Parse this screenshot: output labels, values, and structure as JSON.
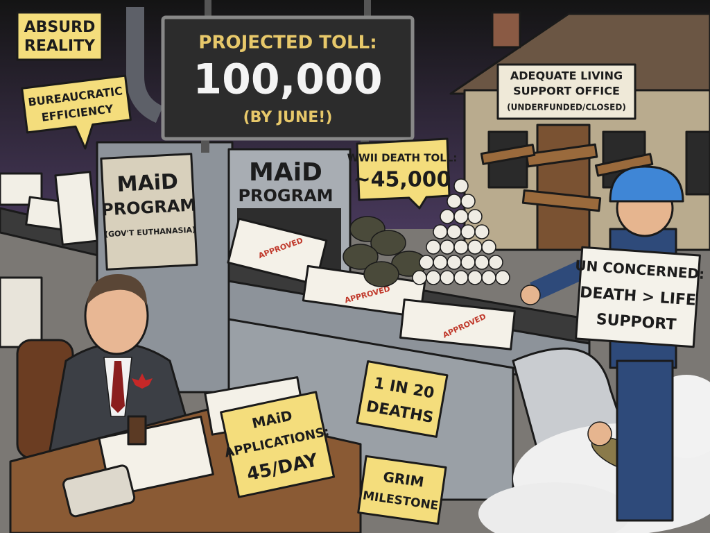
{
  "corner_label": [
    "ABSURD",
    "REALITY"
  ],
  "speech_bubble": [
    "BUREAUCRATIC",
    "EFFICIENCY"
  ],
  "toll_sign": {
    "heading": "PROJECTED TOLL:",
    "figure": "100,000",
    "note": "(BY JUNE!)"
  },
  "office_sign": {
    "lines": [
      "ADEQUATE LIVING",
      "SUPPORT OFFICE"
    ],
    "note": "(UNDERFUNDED/CLOSED)"
  },
  "wwii_bubble": {
    "heading": "WWII DEATH TOLL:",
    "figure": "~45,000"
  },
  "machine": {
    "front": [
      "MAiD",
      "PROGRAM"
    ],
    "side": [
      "MAiD",
      "PROGRAM"
    ],
    "side_note": "(GOV'T EUTHANASIA)"
  },
  "stamp": "APPROVED",
  "un_sign": [
    "UN CONCERNED:",
    "DEATH > LIFE",
    "SUPPORT"
  ],
  "ratio_sign": [
    "1 IN 20",
    "DEATHS"
  ],
  "desk_sign": [
    "MAiD",
    "APPLICATIONS:",
    "45/DAY"
  ],
  "milestone_sign": [
    "GRIM",
    "MILESTONE"
  ]
}
